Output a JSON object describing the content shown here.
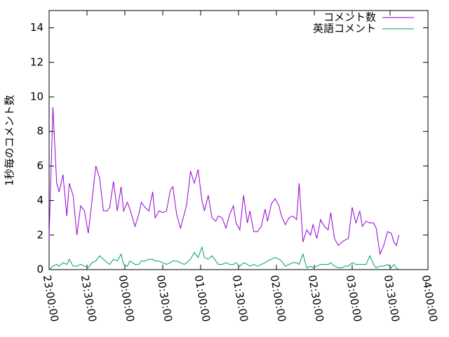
{
  "chart_data": {
    "type": "line",
    "y_label": "1秒毎のコメント数",
    "x": [
      0,
      3,
      6,
      8,
      11,
      14,
      16,
      19,
      22,
      25,
      28,
      31,
      34,
      37,
      40,
      43,
      46,
      48,
      51,
      54,
      57,
      59,
      62,
      64,
      68,
      71,
      73,
      76,
      79,
      82,
      84,
      87,
      90,
      93,
      96,
      98,
      101,
      104,
      107,
      109,
      112,
      115,
      118,
      121,
      123,
      126,
      129,
      132,
      134,
      137,
      140,
      143,
      146,
      148,
      151,
      154,
      157,
      159,
      162,
      165,
      168,
      171,
      173,
      176,
      179,
      182,
      184,
      187,
      190,
      193,
      196,
      198,
      201,
      204,
      207,
      209,
      212,
      215,
      218,
      221,
      223,
      226,
      229,
      232,
      234,
      237,
      240,
      243,
      246,
      248,
      251,
      254,
      257,
      259,
      262,
      265,
      268,
      271,
      273,
      275,
      277
    ],
    "series": [
      {
        "name": "コメント数",
        "color": "#9400d3",
        "values": [
          1.9,
          9.4,
          5.0,
          4.5,
          5.5,
          3.1,
          5.0,
          4.3,
          2.0,
          3.7,
          3.4,
          2.1,
          4.0,
          6.0,
          5.3,
          3.4,
          3.4,
          3.6,
          5.1,
          3.4,
          4.8,
          3.4,
          3.9,
          3.5,
          2.5,
          3.2,
          3.9,
          3.6,
          3.4,
          4.5,
          3.0,
          3.4,
          3.3,
          3.4,
          4.6,
          4.8,
          3.2,
          2.4,
          3.2,
          3.8,
          5.7,
          5.0,
          5.8,
          4.0,
          3.4,
          4.3,
          3.0,
          2.8,
          3.1,
          3.0,
          2.4,
          3.2,
          3.7,
          2.7,
          2.3,
          4.3,
          2.7,
          3.4,
          2.2,
          2.2,
          2.5,
          3.5,
          2.8,
          3.8,
          4.1,
          3.7,
          3.1,
          2.6,
          3.0,
          3.1,
          2.9,
          5.0,
          1.6,
          2.3,
          2.0,
          2.6,
          1.8,
          2.9,
          2.5,
          2.3,
          3.3,
          1.8,
          1.4,
          1.6,
          1.7,
          1.8,
          3.6,
          2.7,
          3.4,
          2.5,
          2.8,
          2.7,
          2.7,
          2.4,
          0.9,
          1.4,
          2.2,
          2.1,
          1.6,
          1.4,
          2.0
        ]
      },
      {
        "name": "英語コメント",
        "color": "#009e73",
        "values": [
          0.0,
          0.2,
          0.3,
          0.2,
          0.4,
          0.3,
          0.6,
          0.2,
          0.2,
          0.3,
          0.2,
          0.1,
          0.4,
          0.5,
          0.8,
          0.6,
          0.4,
          0.3,
          0.6,
          0.5,
          0.9,
          0.3,
          0.2,
          0.5,
          0.3,
          0.3,
          0.5,
          0.5,
          0.6,
          0.6,
          0.5,
          0.5,
          0.4,
          0.3,
          0.4,
          0.5,
          0.5,
          0.4,
          0.3,
          0.4,
          0.6,
          1.0,
          0.7,
          1.3,
          0.7,
          0.6,
          0.8,
          0.5,
          0.3,
          0.3,
          0.4,
          0.3,
          0.3,
          0.4,
          0.2,
          0.4,
          0.3,
          0.2,
          0.3,
          0.2,
          0.3,
          0.4,
          0.5,
          0.6,
          0.7,
          0.6,
          0.5,
          0.2,
          0.3,
          0.4,
          0.4,
          0.3,
          0.9,
          0.1,
          0.2,
          0.1,
          0.2,
          0.3,
          0.3,
          0.3,
          0.4,
          0.2,
          0.1,
          0.1,
          0.2,
          0.2,
          0.4,
          0.3,
          0.3,
          0.3,
          0.3,
          0.8,
          0.3,
          0.1,
          0.2,
          0.2,
          0.3,
          0.1,
          0.3,
          0.1,
          0.0
        ]
      }
    ],
    "xlim": [
      0,
      300
    ],
    "xticks": [
      {
        "value": 0,
        "label": "23:00:00"
      },
      {
        "value": 30,
        "label": "23:30:00"
      },
      {
        "value": 60,
        "label": "00:00:00"
      },
      {
        "value": 90,
        "label": "00:30:00"
      },
      {
        "value": 120,
        "label": "01:00:00"
      },
      {
        "value": 150,
        "label": "01:30:00"
      },
      {
        "value": 180,
        "label": "02:00:00"
      },
      {
        "value": 210,
        "label": "02:30:00"
      },
      {
        "value": 240,
        "label": "03:00:00"
      },
      {
        "value": 270,
        "label": "03:30:00"
      },
      {
        "value": 300,
        "label": "04:00:00"
      }
    ],
    "ylim": [
      0,
      15
    ],
    "yticks": [
      0,
      2,
      4,
      6,
      8,
      10,
      12,
      14
    ],
    "legend": "top-right"
  }
}
